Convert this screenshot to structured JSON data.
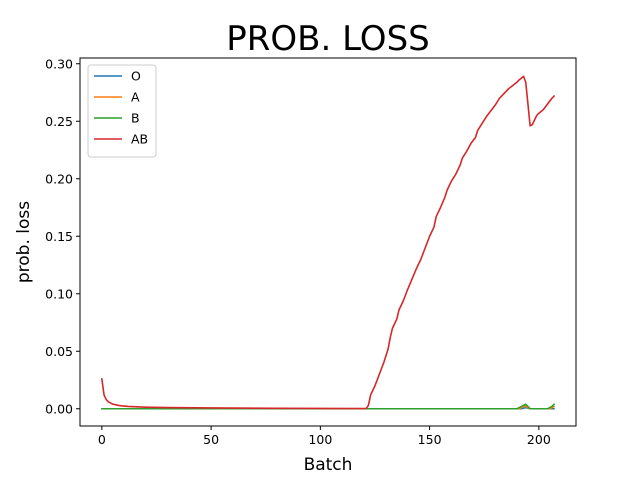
{
  "chart_data": {
    "type": "line",
    "title": "PROB. LOSS",
    "xlabel": "Batch",
    "ylabel": "prob. loss",
    "xlim": [
      -10,
      217
    ],
    "ylim": [
      -0.015,
      0.305
    ],
    "xticks": [
      0,
      50,
      100,
      150,
      200
    ],
    "yticks": [
      0.0,
      0.05,
      0.1,
      0.15,
      0.2,
      0.25,
      0.3
    ],
    "ytick_labels": [
      "0.00",
      "0.05",
      "0.10",
      "0.15",
      "0.20",
      "0.25",
      "0.30"
    ],
    "legend_position": "upper-left",
    "grid": false,
    "series": [
      {
        "name": "O",
        "color": "#1f77b4",
        "points": [
          [
            0,
            0.0
          ],
          [
            192,
            0.0
          ],
          [
            194,
            0.001
          ],
          [
            196,
            0.0
          ],
          [
            207,
            0.0
          ]
        ]
      },
      {
        "name": "A",
        "color": "#ff7f0e",
        "points": [
          [
            0,
            0.0
          ],
          [
            191,
            0.0
          ],
          [
            193,
            0.002
          ],
          [
            194,
            0.002
          ],
          [
            196,
            0.0
          ],
          [
            205,
            0.0
          ],
          [
            207,
            0.002
          ]
        ]
      },
      {
        "name": "B",
        "color": "#2ca02c",
        "points": [
          [
            0,
            0.0
          ],
          [
            190,
            0.0
          ],
          [
            192,
            0.002
          ],
          [
            194,
            0.004
          ],
          [
            196,
            0.0
          ],
          [
            204,
            0.0
          ],
          [
            206,
            0.002
          ],
          [
            207,
            0.004
          ]
        ]
      },
      {
        "name": "AB",
        "color": "#d62728",
        "points": [
          [
            0,
            0.026
          ],
          [
            1,
            0.012
          ],
          [
            2,
            0.008
          ],
          [
            3,
            0.006
          ],
          [
            5,
            0.004
          ],
          [
            8,
            0.0028
          ],
          [
            12,
            0.002
          ],
          [
            20,
            0.0014
          ],
          [
            30,
            0.001
          ],
          [
            50,
            0.0007
          ],
          [
            80,
            0.0004
          ],
          [
            100,
            0.0003
          ],
          [
            121,
            0.0002
          ],
          [
            122,
            0.003
          ],
          [
            123,
            0.012
          ],
          [
            125,
            0.02
          ],
          [
            127,
            0.03
          ],
          [
            129,
            0.04
          ],
          [
            130,
            0.046
          ],
          [
            131,
            0.052
          ],
          [
            132,
            0.062
          ],
          [
            133,
            0.07
          ],
          [
            134,
            0.074
          ],
          [
            135,
            0.078
          ],
          [
            136,
            0.086
          ],
          [
            138,
            0.094
          ],
          [
            140,
            0.104
          ],
          [
            142,
            0.113
          ],
          [
            144,
            0.122
          ],
          [
            146,
            0.13
          ],
          [
            148,
            0.14
          ],
          [
            150,
            0.15
          ],
          [
            152,
            0.158
          ],
          [
            153,
            0.167
          ],
          [
            155,
            0.175
          ],
          [
            157,
            0.184
          ],
          [
            158,
            0.19
          ],
          [
            160,
            0.198
          ],
          [
            162,
            0.204
          ],
          [
            164,
            0.212
          ],
          [
            165,
            0.218
          ],
          [
            167,
            0.224
          ],
          [
            169,
            0.231
          ],
          [
            171,
            0.236
          ],
          [
            172,
            0.242
          ],
          [
            174,
            0.248
          ],
          [
            176,
            0.254
          ],
          [
            178,
            0.259
          ],
          [
            180,
            0.264
          ],
          [
            182,
            0.27
          ],
          [
            184,
            0.274
          ],
          [
            186,
            0.278
          ],
          [
            188,
            0.281
          ],
          [
            190,
            0.284
          ],
          [
            191,
            0.286
          ],
          [
            193,
            0.289
          ],
          [
            194,
            0.284
          ],
          [
            195,
            0.265
          ],
          [
            196,
            0.246
          ],
          [
            197,
            0.247
          ],
          [
            198,
            0.251
          ],
          [
            199,
            0.255
          ],
          [
            200,
            0.257
          ],
          [
            202,
            0.26
          ],
          [
            204,
            0.265
          ],
          [
            206,
            0.27
          ],
          [
            207,
            0.272
          ]
        ]
      }
    ]
  }
}
